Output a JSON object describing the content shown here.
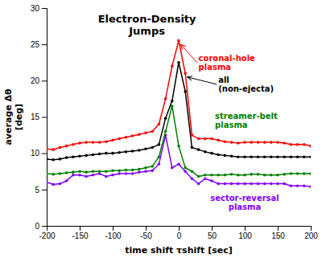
{
  "chart_data": {
    "type": "line",
    "title": "Electron-Density\nJumps",
    "x_label": "time shift τshift [sec]",
    "y_label": "average Δθ\n[deg]",
    "x": [
      -200,
      -190,
      -180,
      -170,
      -160,
      -150,
      -140,
      -130,
      -120,
      -110,
      -100,
      -90,
      -80,
      -70,
      -60,
      -50,
      -40,
      -30,
      -20,
      -10,
      0,
      10,
      20,
      30,
      40,
      50,
      60,
      70,
      80,
      90,
      100,
      110,
      120,
      130,
      140,
      150,
      160,
      170,
      180,
      190,
      200
    ],
    "series": [
      {
        "color": "#8000ff",
        "marker": "circle",
        "values": [
          6.0,
          5.7,
          5.8,
          6.2,
          7.0,
          7.0,
          6.8,
          7.0,
          7.2,
          6.8,
          7.0,
          7.2,
          7.2,
          7.2,
          7.4,
          7.5,
          7.6,
          8.5,
          12.5,
          8.0,
          8.5,
          7.5,
          6.5,
          5.8,
          6.5,
          6.2,
          5.8,
          5.8,
          5.8,
          5.8,
          5.8,
          5.8,
          5.8,
          5.8,
          5.8,
          5.8,
          5.8,
          5.5,
          5.5,
          5.5,
          5.4
        ]
      },
      {
        "color": "#008000",
        "marker": "circle",
        "values": [
          7.2,
          7.1,
          7.2,
          7.3,
          7.4,
          7.5,
          7.4,
          7.5,
          7.5,
          7.5,
          7.6,
          7.6,
          7.7,
          7.7,
          7.8,
          8.0,
          8.2,
          9.5,
          13.0,
          16.5,
          11.0,
          8.0,
          7.5,
          6.8,
          7.0,
          7.0,
          7.0,
          7.0,
          7.1,
          7.0,
          7.0,
          7.1,
          7.1,
          7.0,
          7.0,
          7.0,
          7.1,
          7.2,
          7.2,
          7.2,
          7.2
        ]
      },
      {
        "color": "#000000",
        "marker": "circle",
        "values": [
          9.2,
          9.1,
          9.2,
          9.4,
          9.5,
          9.6,
          9.7,
          9.8,
          9.9,
          10.0,
          10.0,
          10.1,
          10.2,
          10.3,
          10.4,
          10.6,
          10.8,
          11.2,
          14.8,
          17.2,
          22.5,
          18.5,
          10.8,
          10.5,
          10.2,
          10.0,
          9.8,
          9.7,
          9.6,
          9.5,
          9.5,
          9.5,
          9.5,
          9.5,
          9.5,
          9.5,
          9.5,
          9.5,
          9.5,
          9.5,
          9.5
        ]
      },
      {
        "color": "#ff0000",
        "marker": "circle",
        "values": [
          10.6,
          10.5,
          10.8,
          11.0,
          11.2,
          11.4,
          11.5,
          11.5,
          11.5,
          11.6,
          11.8,
          12.0,
          12.2,
          12.4,
          12.6,
          12.8,
          13.0,
          14.0,
          17.5,
          22.0,
          25.5,
          21.0,
          12.5,
          12.0,
          12.0,
          12.0,
          11.8,
          11.6,
          11.5,
          11.4,
          11.5,
          11.5,
          11.5,
          11.5,
          11.5,
          11.5,
          11.4,
          11.2,
          11.2,
          11.2,
          11.0
        ]
      }
    ],
    "xlim": [
      -200,
      200
    ],
    "ylim": [
      0,
      30
    ],
    "xticks": [
      -200,
      -150,
      -100,
      -50,
      0,
      50,
      100,
      150,
      200
    ],
    "yticks": [
      0,
      5,
      10,
      15,
      20,
      25,
      30
    ],
    "grid": false,
    "annotations": [
      {
        "text": "coronal-hole\nplasma",
        "color": "#ff0000",
        "x": 30,
        "y": 22.5,
        "arrow": {
          "x": 3,
          "y": 25.0
        }
      },
      {
        "text": "all\n(non-ejecta)",
        "color": "#000000",
        "x": 60,
        "y": 19.5,
        "arrow": {
          "x": 13,
          "y": 20.5
        }
      },
      {
        "text": "streamer-belt\nplasma",
        "color": "#008000",
        "x": 55,
        "y": 14.5
      },
      {
        "text": "sector-reversal\nplasma",
        "color": "#8000ff",
        "x": 100,
        "y": 3.2,
        "align": "center"
      }
    ]
  }
}
